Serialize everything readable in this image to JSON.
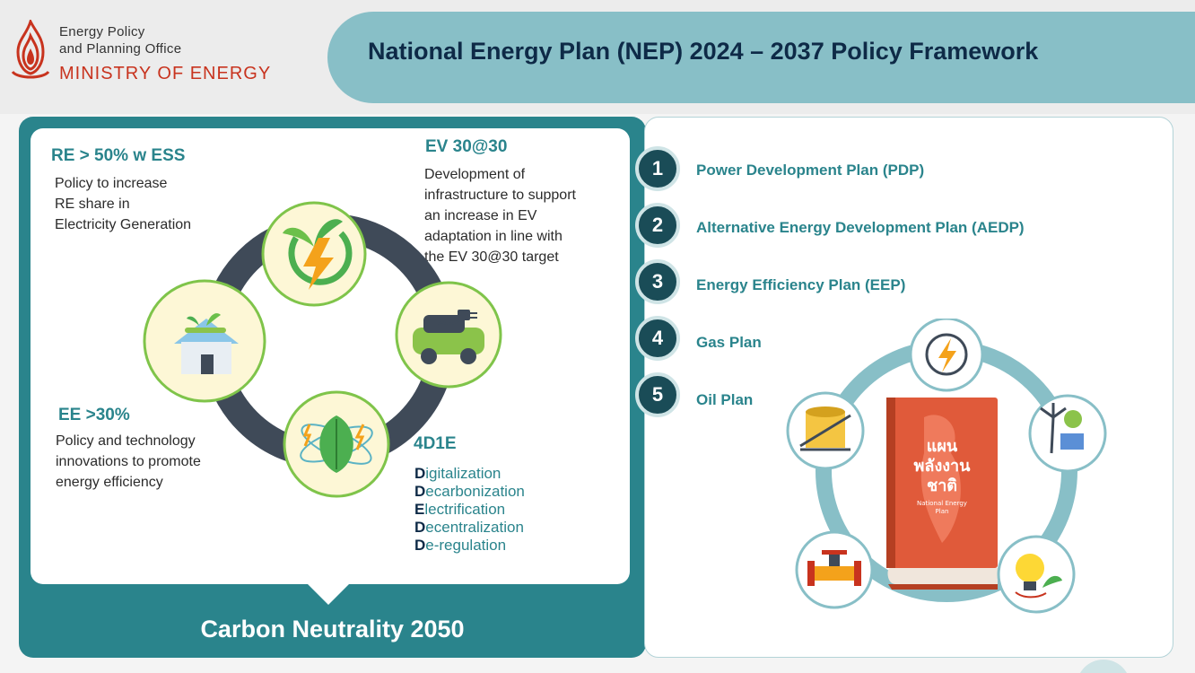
{
  "header": {
    "org_line_1": "Energy Policy",
    "org_line_2": "and Planning Office",
    "ministry": "MINISTRY OF ENERGY",
    "title": "National Energy Plan (NEP) 2024 – 2037 Policy Framework"
  },
  "left_panel": {
    "re": {
      "heading": "RE > 50% w ESS",
      "lines": [
        "Policy to increase",
        "RE share in",
        "Electricity Generation"
      ]
    },
    "ev": {
      "heading": "EV 30@30",
      "lines": [
        "Development of",
        "infrastructure to support",
        "an increase in EV",
        "adaptation in line with",
        "the EV 30@30 target"
      ]
    },
    "ee": {
      "heading": "EE >30%",
      "lines": [
        "Policy and technology",
        "innovations to promote",
        "energy efficiency"
      ]
    },
    "d4e": {
      "heading": "4D1E",
      "items": [
        {
          "first": "D",
          "rest": "igitalization"
        },
        {
          "first": "D",
          "rest": "ecarbonization"
        },
        {
          "first": "E",
          "rest": "lectrification"
        },
        {
          "first": "D",
          "rest": "ecentralization"
        },
        {
          "first": "D",
          "rest": "e-regulation"
        }
      ]
    },
    "footer": "Carbon Neutrality 2050",
    "icons": [
      "renewable-energy-icon",
      "electric-car-icon",
      "energy-efficiency-leaf-icon",
      "green-house-icon"
    ]
  },
  "plans": [
    {
      "number": "1",
      "label": "Power Development Plan (PDP)"
    },
    {
      "number": "2",
      "label": "Alternative Energy Development Plan (AEDP)"
    },
    {
      "number": "3",
      "label": "Energy Efficiency Plan (EEP)"
    },
    {
      "number": "4",
      "label": "Gas Plan"
    },
    {
      "number": "5",
      "label": "Oil Plan"
    }
  ],
  "book": {
    "thai_line_1": "แผน",
    "thai_line_2": "พลังงาน",
    "thai_line_3": "ชาติ",
    "english_line_1": "National Energy",
    "english_line_2": "Plan"
  },
  "colors": {
    "teal": "#2a848c",
    "navy": "#0e2a47",
    "title_pill": "#88bfc7",
    "book_red": "#e05a3a",
    "ring": "#3f4a58"
  }
}
